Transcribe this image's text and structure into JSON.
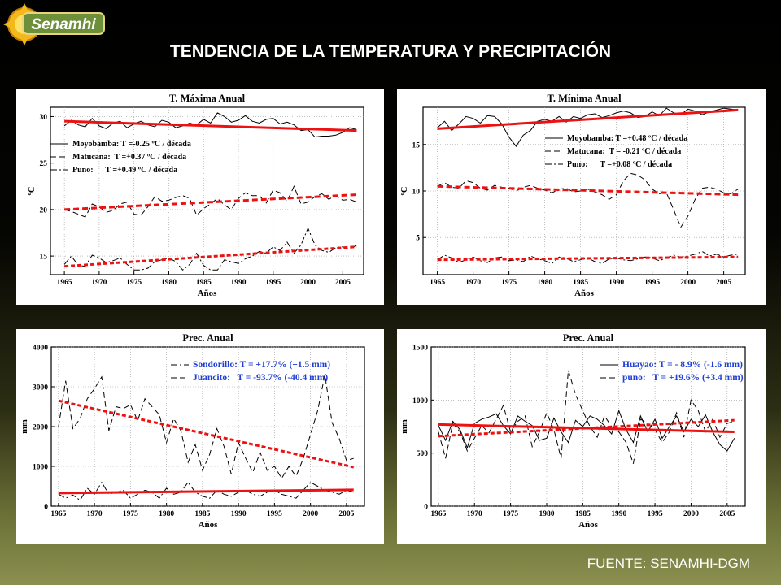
{
  "header": {
    "logo_text": "Senamhi",
    "title": "TENDENCIA DE LA TEMPERATURA Y PRECIPITACIÓN"
  },
  "footer": {
    "source": "FUENTE: SENAMHI-DGM"
  },
  "colors": {
    "trend": "#ee1111",
    "series": "#000000",
    "legend_blue": "#1f3fd6"
  },
  "chart_data": [
    {
      "type": "line",
      "title": "T. Máxima Anual",
      "xlabel": "Años",
      "ylabel": "ºC",
      "xlim": [
        1963,
        2008
      ],
      "ylim": [
        13,
        31
      ],
      "xticks": [
        1965,
        1970,
        1975,
        1980,
        1985,
        1990,
        1995,
        2000,
        2005
      ],
      "yticks": [
        15,
        20,
        25,
        30
      ],
      "legend_color": "#000000",
      "legend": [
        {
          "style": "solid",
          "text": "Moyobamba: T =-0.25 ºC / década"
        },
        {
          "style": "dashed",
          "text": "Matucana:  T =+0.37 ºC / década"
        },
        {
          "style": "dashdot",
          "text": "Puno:      T =+0.49 ºC / década"
        }
      ],
      "series": [
        {
          "style": "solid",
          "x0": 1965,
          "values": [
            29.0,
            29.6,
            29.1,
            28.9,
            29.8,
            29.0,
            28.7,
            29.3,
            29.5,
            28.8,
            29.2,
            29.5,
            29.1,
            28.9,
            29.6,
            29.4,
            28.8,
            29.0,
            29.3,
            29.1,
            29.7,
            29.3,
            30.4,
            30.0,
            29.4,
            29.6,
            30.1,
            29.5,
            29.3,
            29.7,
            29.8,
            29.2,
            29.4,
            29.1,
            28.5,
            28.6,
            27.8,
            27.9,
            27.9,
            28.0,
            28.3,
            28.8,
            28.6
          ]
        },
        {
          "style": "dashed",
          "x0": 1965,
          "values": [
            20.0,
            19.8,
            19.5,
            19.2,
            20.6,
            20.3,
            19.7,
            19.9,
            20.6,
            20.8,
            19.5,
            19.4,
            20.3,
            21.4,
            20.9,
            21.0,
            21.3,
            21.5,
            21.2,
            19.4,
            20.1,
            20.6,
            21.2,
            20.5,
            20.0,
            21.2,
            21.8,
            21.5,
            21.5,
            20.7,
            22.1,
            21.8,
            20.9,
            22.5,
            20.6,
            20.8,
            21.4,
            21.7,
            21.1,
            21.5,
            21.0,
            21.1,
            20.8
          ]
        },
        {
          "style": "dashdot",
          "x0": 1965,
          "values": [
            14.1,
            15.0,
            14.0,
            13.9,
            15.1,
            14.8,
            14.3,
            14.5,
            14.8,
            14.1,
            13.5,
            13.5,
            13.7,
            14.4,
            14.6,
            14.8,
            14.4,
            13.5,
            14.1,
            15.3,
            14.0,
            13.5,
            13.5,
            14.6,
            14.4,
            14.2,
            14.7,
            15.0,
            15.5,
            15.3,
            16.0,
            15.6,
            16.5,
            15.3,
            16.2,
            18.0,
            16.2,
            15.6,
            15.4,
            15.9,
            16.0,
            15.7,
            16.2
          ]
        }
      ],
      "trends": [
        {
          "style": "solid",
          "x": [
            1965,
            2007
          ],
          "y": [
            29.5,
            28.5
          ]
        },
        {
          "style": "dashed",
          "x": [
            1965,
            2007
          ],
          "y": [
            20.0,
            21.6
          ]
        },
        {
          "style": "dotted",
          "x": [
            1965,
            2007
          ],
          "y": [
            13.9,
            16.0
          ]
        }
      ]
    },
    {
      "type": "line",
      "title": "T. Mínima Anual",
      "xlabel": "Años",
      "ylabel": "ºC",
      "xlim": [
        1963,
        2008
      ],
      "ylim": [
        1,
        19
      ],
      "xticks": [
        1965,
        1970,
        1975,
        1980,
        1985,
        1990,
        1995,
        2000,
        2005
      ],
      "yticks": [
        5,
        10,
        15
      ],
      "legend_color": "#000000",
      "legend": [
        {
          "style": "solid",
          "text": "Moyobamba: T =+0.48 ºC / década"
        },
        {
          "style": "dashed",
          "text": "Matucana:  T = -0.21 ºC / década"
        },
        {
          "style": "dashdot",
          "text": "Puno:      T =+0.08 ºC / década"
        }
      ],
      "series": [
        {
          "style": "solid",
          "x0": 1965,
          "values": [
            16.8,
            17.5,
            16.5,
            17.2,
            18.0,
            17.8,
            17.3,
            18.1,
            18.0,
            17.2,
            15.8,
            14.8,
            16.0,
            16.5,
            17.5,
            17.7,
            17.5,
            18.0,
            17.4,
            18.0,
            17.8,
            18.2,
            18.3,
            17.9,
            18.1,
            18.4,
            18.6,
            18.4,
            17.9,
            18.0,
            18.5,
            18.1,
            18.9,
            18.4,
            18.2,
            18.8,
            18.6,
            18.2,
            18.5,
            18.7,
            18.9,
            18.8,
            18.7
          ]
        },
        {
          "style": "dashed",
          "x0": 1965,
          "values": [
            10.5,
            10.9,
            10.4,
            10.3,
            11.1,
            10.9,
            10.3,
            10.1,
            10.6,
            10.4,
            10.3,
            10.0,
            10.4,
            10.6,
            10.3,
            10.1,
            9.8,
            10.2,
            10.3,
            9.9,
            10.0,
            10.2,
            9.9,
            9.6,
            9.1,
            9.6,
            11.1,
            11.9,
            11.7,
            11.2,
            10.2,
            9.7,
            9.8,
            8.0,
            6.1,
            7.3,
            9.1,
            10.3,
            10.4,
            10.2,
            9.8,
            9.7,
            10.2
          ]
        },
        {
          "style": "dashdot",
          "x0": 1965,
          "values": [
            2.6,
            3.1,
            2.8,
            2.3,
            2.6,
            2.9,
            2.5,
            2.3,
            2.8,
            2.9,
            2.5,
            2.6,
            2.4,
            3.0,
            2.7,
            2.5,
            2.2,
            2.9,
            2.8,
            2.4,
            2.6,
            2.8,
            2.4,
            2.2,
            2.7,
            2.8,
            2.6,
            2.5,
            2.7,
            2.9,
            2.8,
            2.5,
            2.8,
            3.1,
            2.9,
            3.0,
            3.2,
            3.5,
            3.0,
            3.2,
            2.9,
            3.1,
            3.2
          ]
        }
      ],
      "trends": [
        {
          "style": "solid",
          "x": [
            1965,
            2007
          ],
          "y": [
            16.7,
            18.7
          ]
        },
        {
          "style": "dashed",
          "x": [
            1965,
            2007
          ],
          "y": [
            10.5,
            9.6
          ]
        },
        {
          "style": "dotted",
          "x": [
            1965,
            2007
          ],
          "y": [
            2.6,
            2.9
          ]
        }
      ]
    },
    {
      "type": "line",
      "title": "Prec. Anual",
      "xlabel": "Años",
      "ylabel": "mm",
      "xlim": [
        1964,
        2007.5
      ],
      "ylim": [
        0,
        4000
      ],
      "xticks": [
        1965,
        1970,
        1975,
        1980,
        1985,
        1990,
        1995,
        2000,
        2005
      ],
      "yticks": [
        0,
        1000,
        2000,
        3000,
        4000
      ],
      "legend_color": "#1f3fd6",
      "legend": [
        {
          "style": "dashdot",
          "text": "Sondorillo: T = +17.7% (+1.5 mm)"
        },
        {
          "style": "dashed",
          "text": "Juancito:   T = -93.7% (-40.4 mm)"
        }
      ],
      "series": [
        {
          "style": "dashed",
          "x0": 1965,
          "values": [
            2000,
            3150,
            1950,
            2200,
            2700,
            2950,
            3250,
            1900,
            2500,
            2450,
            2550,
            2150,
            2700,
            2500,
            2300,
            1600,
            2200,
            1900,
            1100,
            1550,
            900,
            1300,
            1950,
            1500,
            800,
            1600,
            1200,
            850,
            1350,
            900,
            1000,
            700,
            1000,
            750,
            1200,
            1800,
            2400,
            3300,
            2100,
            1700,
            1150,
            1200
          ]
        },
        {
          "style": "dashdot",
          "x0": 1965,
          "values": [
            300,
            200,
            280,
            150,
            450,
            300,
            600,
            300,
            350,
            400,
            200,
            300,
            400,
            350,
            200,
            450,
            300,
            350,
            600,
            350,
            250,
            200,
            400,
            300,
            250,
            350,
            400,
            300,
            250,
            350,
            400,
            300,
            250,
            200,
            400,
            600,
            500,
            400,
            350,
            300,
            400,
            350
          ]
        }
      ],
      "trends": [
        {
          "style": "dotted",
          "x": [
            1965,
            2006
          ],
          "y": [
            2650,
            980
          ]
        },
        {
          "style": "solid",
          "x": [
            1965,
            2006
          ],
          "y": [
            330,
            410
          ]
        }
      ]
    },
    {
      "type": "line",
      "title": "Prec. Anual",
      "xlabel": "Años",
      "ylabel": "mm",
      "xlim": [
        1964,
        2007.5
      ],
      "ylim": [
        0,
        1500
      ],
      "xticks": [
        1965,
        1970,
        1975,
        1980,
        1985,
        1990,
        1995,
        2000,
        2005
      ],
      "yticks": [
        0,
        500,
        1000,
        1500
      ],
      "legend_color": "#1f3fd6",
      "legend": [
        {
          "style": "solid",
          "text": "Huayao: T = - 8.9% (-1.6 mm)"
        },
        {
          "style": "dashed",
          "text": "puno:   T = +19.6% (+3.4 mm)"
        }
      ],
      "series": [
        {
          "style": "solid",
          "x0": 1965,
          "values": [
            760,
            620,
            800,
            720,
            550,
            780,
            820,
            840,
            870,
            760,
            680,
            850,
            800,
            760,
            620,
            640,
            830,
            700,
            600,
            810,
            750,
            850,
            820,
            760,
            680,
            900,
            720,
            600,
            850,
            700,
            820,
            640,
            750,
            850,
            700,
            820,
            750,
            860,
            700,
            580,
            520,
            640
          ]
        },
        {
          "style": "dashed",
          "x0": 1965,
          "values": [
            700,
            450,
            780,
            700,
            520,
            640,
            760,
            690,
            820,
            950,
            700,
            800,
            850,
            560,
            700,
            880,
            720,
            450,
            1280,
            1050,
            900,
            750,
            650,
            850,
            750,
            700,
            600,
            400,
            820,
            780,
            720,
            600,
            700,
            880,
            650,
            1000,
            900,
            700,
            820,
            650,
            780,
            800
          ]
        }
      ],
      "trends": [
        {
          "style": "solid",
          "x": [
            1965,
            2006
          ],
          "y": [
            770,
            700
          ]
        },
        {
          "style": "dotted",
          "x": [
            1965,
            2006
          ],
          "y": [
            660,
            810
          ]
        }
      ]
    }
  ]
}
